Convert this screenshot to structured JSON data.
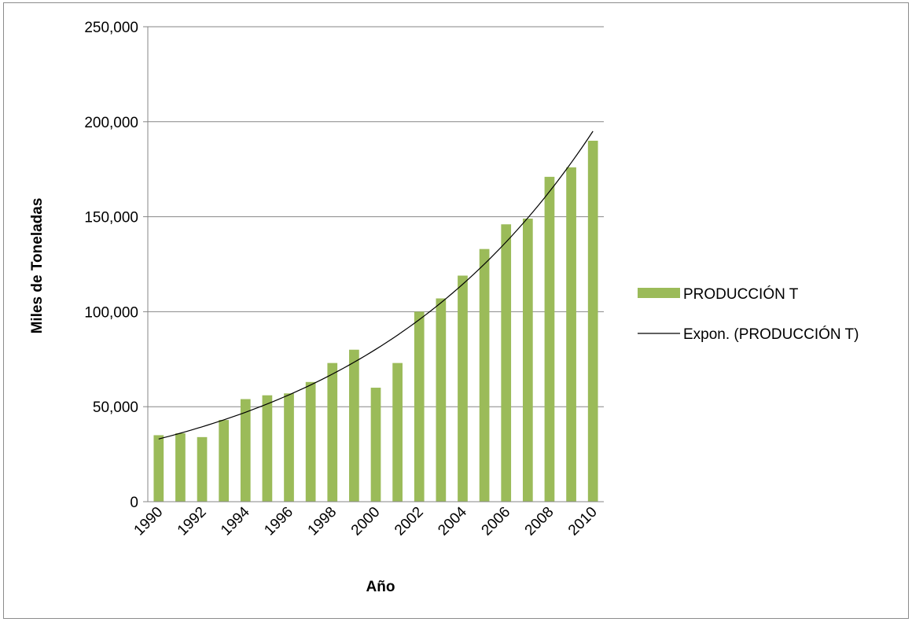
{
  "chart_data": {
    "type": "bar",
    "title": "",
    "xlabel": "Año",
    "ylabel": "Miles de Toneladas",
    "ylim": [
      0,
      250000
    ],
    "yticks": [
      0,
      50000,
      100000,
      150000,
      200000,
      250000
    ],
    "ytick_labels": [
      "0",
      "50,000",
      "100,000",
      "150,000",
      "200,000",
      "250,000"
    ],
    "x": [
      1990,
      1991,
      1992,
      1993,
      1994,
      1995,
      1996,
      1997,
      1998,
      1999,
      2000,
      2001,
      2002,
      2003,
      2004,
      2005,
      2006,
      2007,
      2008,
      2009,
      2010
    ],
    "xtick_labels": [
      "1990",
      "1992",
      "1994",
      "1996",
      "1998",
      "2000",
      "2002",
      "2004",
      "2006",
      "2008",
      "2010"
    ],
    "grid": true,
    "legend_position": "right",
    "series": [
      {
        "name": "PRODUCCIÓN T",
        "kind": "bar",
        "color": "#9BBB59",
        "values": [
          35000,
          36000,
          34000,
          43000,
          54000,
          56000,
          57000,
          63000,
          73000,
          80000,
          60000,
          73000,
          100000,
          107000,
          119000,
          133000,
          146000,
          149000,
          171000,
          176000,
          190000
        ]
      },
      {
        "name": "Expon. (PRODUCCIÓN T)",
        "kind": "trendline",
        "color": "#000000",
        "start_value": 33000,
        "end_value": 195000
      }
    ]
  }
}
